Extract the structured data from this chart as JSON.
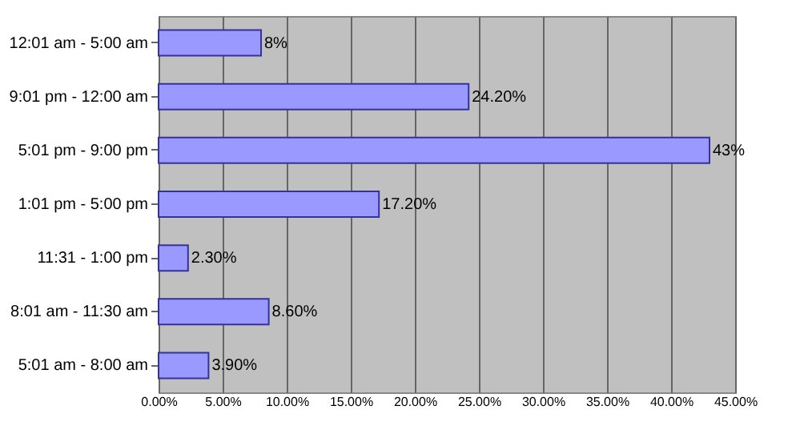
{
  "chart_data": {
    "type": "bar",
    "orientation": "horizontal",
    "categories": [
      "12:01 am - 5:00 am",
      "9:01 pm - 12:00 am",
      "5:01 pm - 9:00 pm",
      "1:01 pm - 5:00 pm",
      "11:31 - 1:00 pm",
      "8:01 am - 11:30 am",
      "5:01 am - 8:00 am"
    ],
    "values": [
      8,
      24.2,
      43,
      17.2,
      2.3,
      8.6,
      3.9
    ],
    "value_labels": [
      "8%",
      "24.20%",
      "43%",
      "17.20%",
      "2.30%",
      "8.60%",
      "3.90%"
    ],
    "color": "#9999ff",
    "xlim": [
      0,
      45
    ],
    "xticks": [
      {
        "value": 0,
        "label": "0.00%"
      },
      {
        "value": 5,
        "label": "5.00%"
      },
      {
        "value": 10,
        "label": "10.00%"
      },
      {
        "value": 15,
        "label": "15.00%"
      },
      {
        "value": 20,
        "label": "20.00%"
      },
      {
        "value": 25,
        "label": "25.00%"
      },
      {
        "value": 30,
        "label": "30.00%"
      },
      {
        "value": 35,
        "label": "35.00%"
      },
      {
        "value": 40,
        "label": "40.00%"
      },
      {
        "value": 45,
        "label": "45.00%"
      }
    ],
    "grid": "x"
  }
}
